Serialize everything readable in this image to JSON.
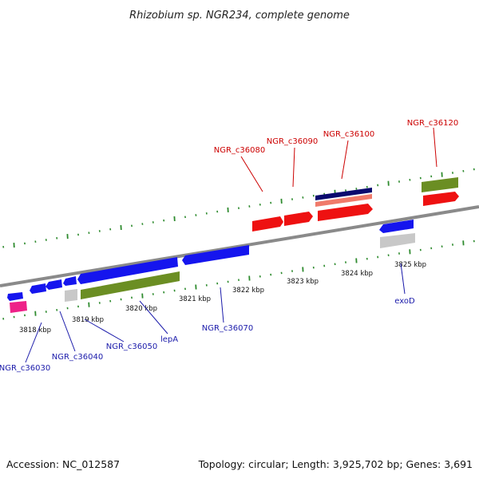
{
  "title": "Rhizobium sp. NGR234, complete genome",
  "footer": {
    "accession": "Accession: NC_012587",
    "summary": "Topology: circular; Length: 3,925,702 bp; Genes: 3,691"
  },
  "colors": {
    "background": "#ffffff",
    "backbone": "#888888",
    "cds": "#ee1111",
    "gene_blue": "#1515ee",
    "gene_olive": "#6b8e23",
    "rrna_gray": "#c8c8c8",
    "pink": "#ee2288",
    "navy": "#0a0a6e",
    "salmon": "#f07a6a",
    "tick": "#2e8b2e",
    "label_red": "#cc0000",
    "label_blue": "#1a1aaa"
  },
  "scale_labels": [
    "3818 kbp",
    "3819 kbp",
    "3820 kbp",
    "3821 kbp",
    "3822 kbp",
    "3823 kbp",
    "3824 kbp",
    "3825 kbp"
  ],
  "gene_labels": {
    "forward": [
      "NGR_c36080",
      "NGR_c36090",
      "NGR_c36100",
      "NGR_c36120"
    ],
    "reverse": [
      "NGR_c36030",
      "NGR_c36040",
      "NGR_c36050",
      "lepA",
      "NGR_c36070",
      "exoD"
    ]
  }
}
